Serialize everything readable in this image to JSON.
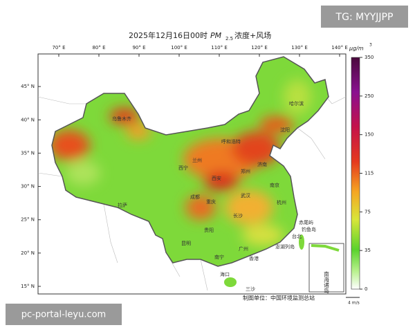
{
  "header": {
    "title_date": "2025年12月16日00时",
    "title_pm": "PM",
    "title_sub": "2.5",
    "title_rest": "浓度+风场"
  },
  "map": {
    "lon_ticks": [
      {
        "value": 70,
        "label": "70° E"
      },
      {
        "value": 80,
        "label": "80° E"
      },
      {
        "value": 90,
        "label": "90° E"
      },
      {
        "value": 100,
        "label": "100° E"
      },
      {
        "value": 110,
        "label": "110° E"
      },
      {
        "value": 120,
        "label": "120° E"
      },
      {
        "value": 130,
        "label": "130° E"
      },
      {
        "value": 140,
        "label": "140° E"
      }
    ],
    "lat_ticks": [
      {
        "value": 45,
        "label": "45° N"
      },
      {
        "value": 40,
        "label": "40° N"
      },
      {
        "value": 35,
        "label": "35° N"
      },
      {
        "value": 30,
        "label": "30° N"
      },
      {
        "value": 25,
        "label": "25° N"
      },
      {
        "value": 20,
        "label": "20° N"
      },
      {
        "value": 15,
        "label": "15° N"
      }
    ],
    "cities": [
      "乌鲁木齐",
      "呼和浩特",
      "哈尔滨",
      "沈阳",
      "西宁",
      "兰州",
      "西安",
      "郑州",
      "济南",
      "成都",
      "重庆",
      "武汉",
      "南京",
      "杭州",
      "长沙",
      "贵阳",
      "昆明",
      "南宁",
      "广州",
      "香港",
      "海口",
      "台北",
      "拉萨",
      "赤尾屿",
      "钓鱼岛",
      "澎湖列岛",
      "三沙",
      "南海诸岛"
    ]
  },
  "colorbar": {
    "unit": "μg/m",
    "unit_sup": "3",
    "ticks": [
      0,
      35,
      75,
      115,
      150,
      250,
      350
    ]
  },
  "footer": {
    "credit": "制图单位：中国环境监测总站",
    "wind_scale": "4 m/s"
  },
  "watermarks": {
    "top": "TG: MYYJJPP",
    "bottom": "pc-portal-leyu.com"
  }
}
